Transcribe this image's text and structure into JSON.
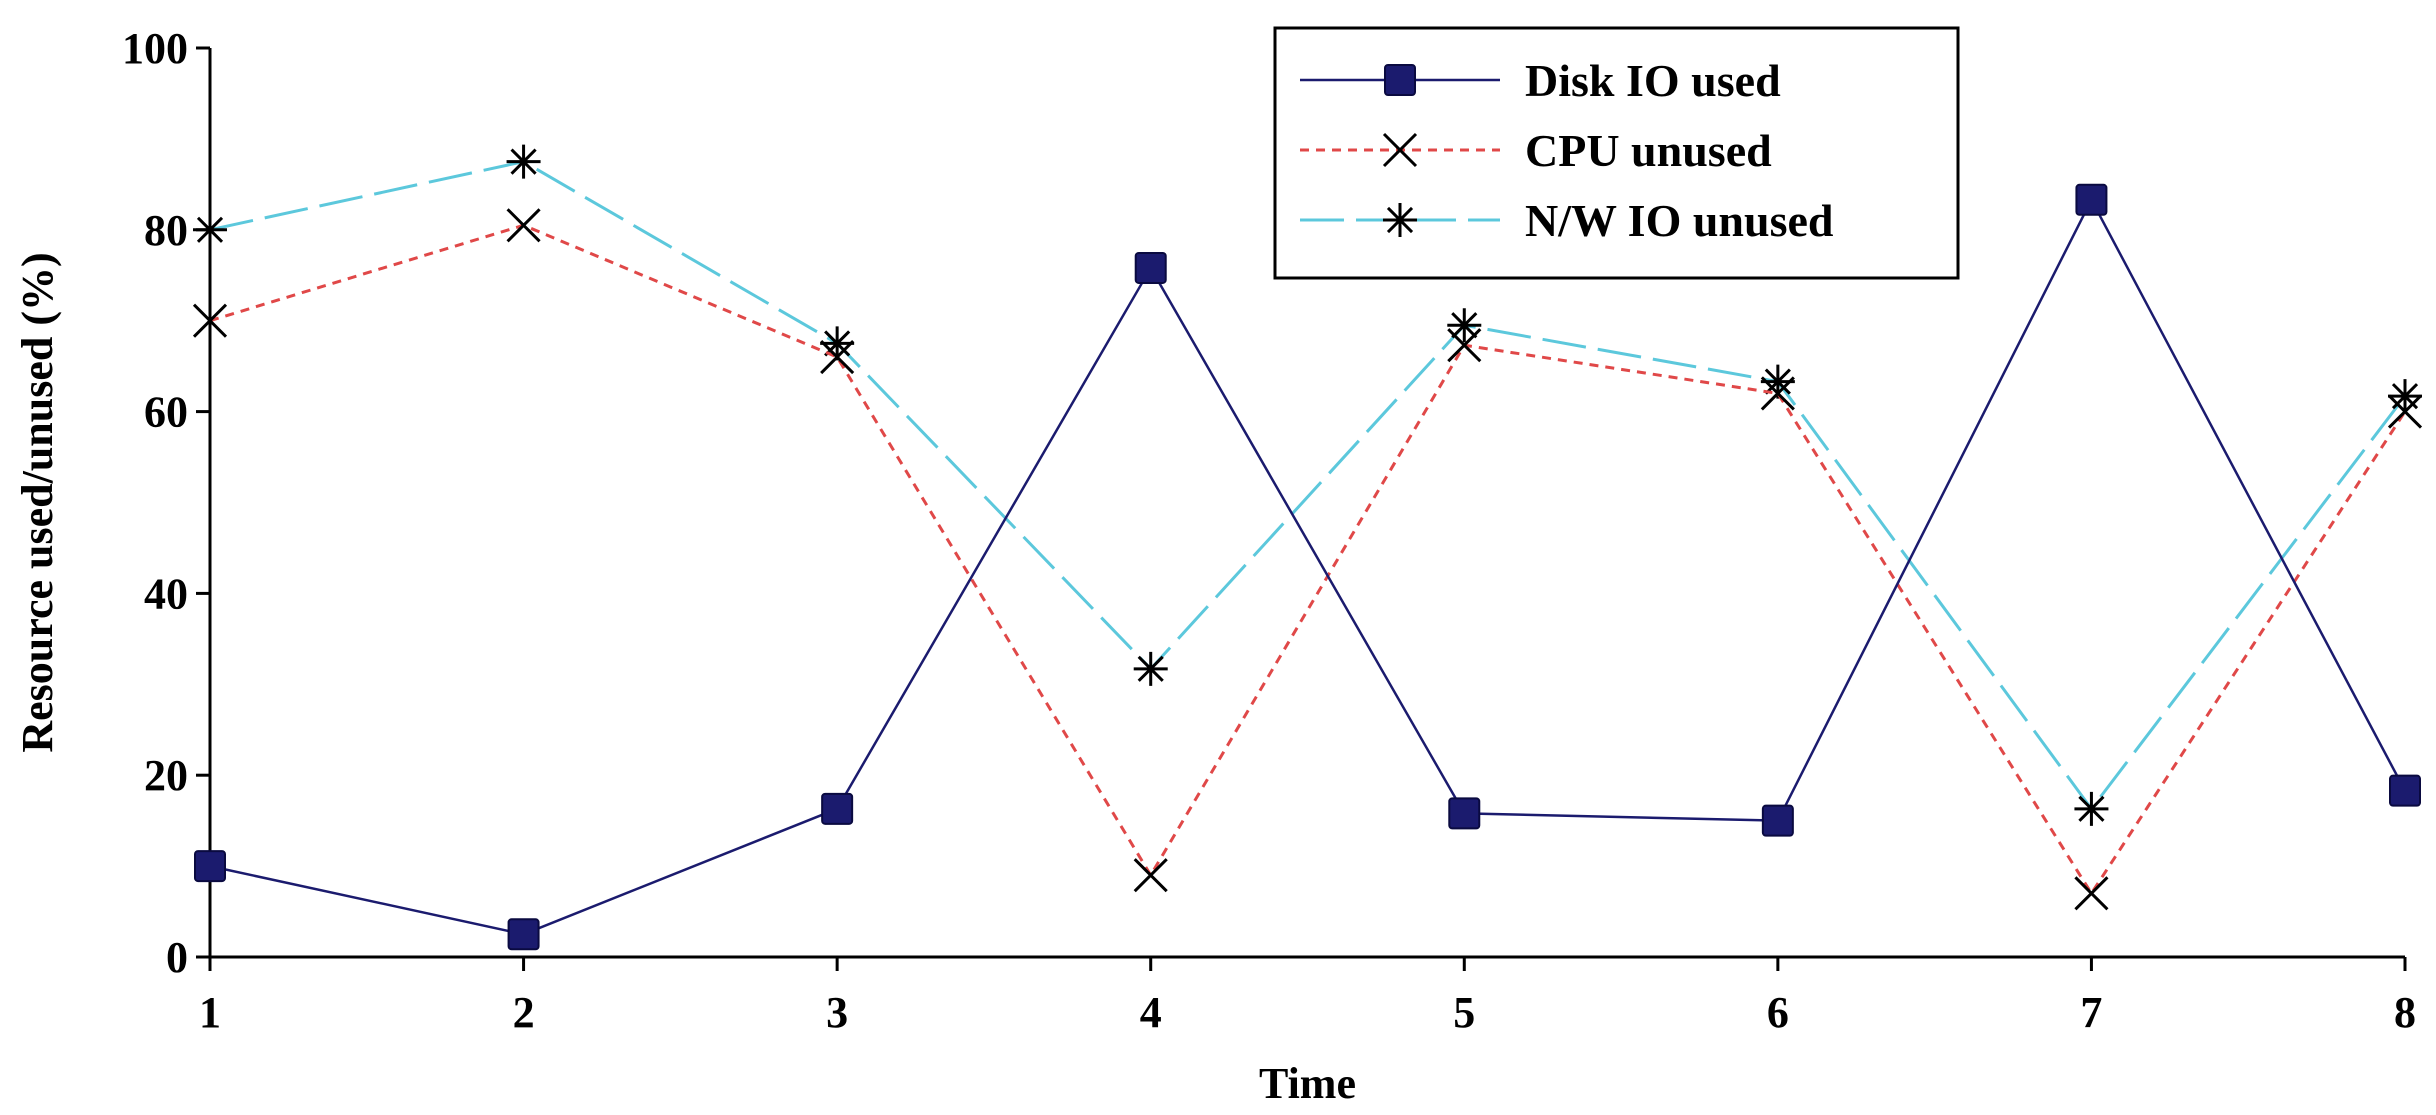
{
  "chart_data": {
    "type": "line",
    "title": "",
    "xlabel": "Time",
    "ylabel": "Resource used/unused (%)",
    "x": [
      1,
      2,
      3,
      4,
      5,
      6,
      7,
      8
    ],
    "x_tick_labels": [
      "1",
      "2",
      "3",
      "4",
      "5",
      "6",
      "7",
      "8"
    ],
    "xlim": [
      1,
      8
    ],
    "ylim": [
      0,
      100
    ],
    "y_ticks": [
      0,
      20,
      40,
      60,
      80,
      100
    ],
    "y_tick_labels": [
      "0",
      "20",
      "40",
      "60",
      "80",
      "100"
    ],
    "grid": false,
    "legend_position": "top-right",
    "series": [
      {
        "name": "Disk IO used",
        "marker": "square",
        "line_style": "solid",
        "color": "#1b1b6e",
        "values": [
          10,
          2.5,
          16.3,
          75.8,
          15.8,
          15,
          83.3,
          18.3
        ]
      },
      {
        "name": "CPU unused",
        "marker": "x",
        "line_style": "dotted",
        "color": "#e04848",
        "values": [
          70,
          80.5,
          66,
          9,
          67.3,
          62,
          7,
          60
        ]
      },
      {
        "name": "N/W IO unused",
        "marker": "star",
        "line_style": "dashed",
        "color": "#5cc8dc",
        "values": [
          80,
          87.5,
          67.5,
          31.7,
          69.5,
          63.3,
          16.3,
          61.7
        ]
      }
    ]
  }
}
